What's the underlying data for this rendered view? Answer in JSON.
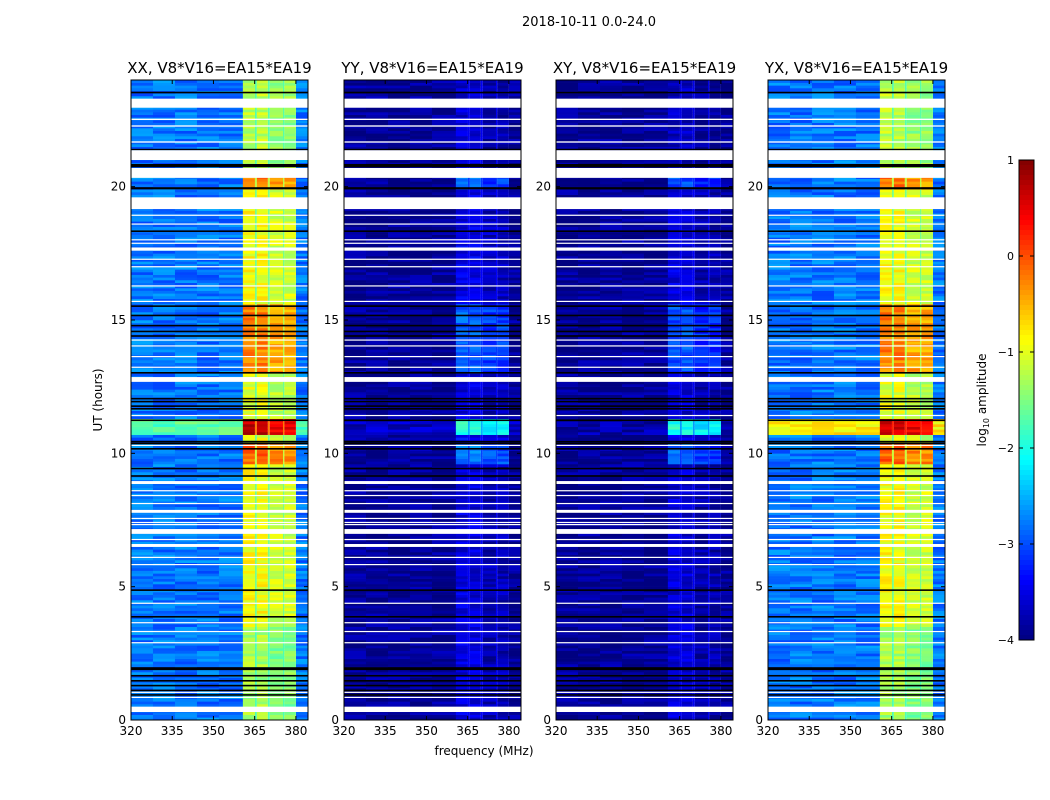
{
  "chart_data": {
    "type": "heatmap",
    "title": "2018-10-11 0.0-24.0",
    "xlabel": "frequency (MHz)",
    "ylabel": "UT (hours)",
    "xlim": [
      320,
      384.4
    ],
    "ylim": [
      0,
      24
    ],
    "xticks": [
      "320",
      "335",
      "350",
      "365",
      "380"
    ],
    "xtick_values": [
      320,
      335,
      350,
      365,
      380
    ],
    "yticks": [
      "0",
      "5",
      "10",
      "15",
      "20"
    ],
    "ytick_values": [
      0,
      5,
      10,
      15,
      20
    ],
    "colorbar": {
      "label_main": "log",
      "label_sub": "10",
      "label_rest": " amplitude",
      "range": [
        -4,
        1
      ],
      "ticks": [
        "1",
        "0",
        "−1",
        "−2",
        "−3",
        "−4"
      ],
      "tick_values": [
        1,
        0,
        -1,
        -2,
        -3,
        -4
      ],
      "colormap": "jet"
    },
    "sub_bands_mhz": [
      [
        360.7,
        365.1
      ],
      [
        365.8,
        369.8
      ],
      [
        370.5,
        375.3
      ],
      [
        375.8,
        380.0
      ]
    ],
    "flagged_hours_white": [
      [
        23.3,
        22.96
      ],
      [
        22.55,
        22.5
      ],
      [
        22.3,
        22.25
      ],
      [
        21.7,
        21.65
      ],
      [
        21.37,
        21.0
      ],
      [
        20.7,
        20.33
      ],
      [
        19.6,
        19.16
      ],
      [
        18.95,
        18.91
      ],
      [
        18.62,
        18.58
      ],
      [
        18.03,
        17.99
      ],
      [
        17.9,
        17.86
      ],
      [
        17.72,
        17.6
      ],
      [
        17.3,
        17.26
      ],
      [
        17.02,
        16.98
      ],
      [
        16.3,
        16.26
      ],
      [
        15.72,
        15.68
      ],
      [
        14.27,
        14.23
      ],
      [
        14.05,
        14.01
      ],
      [
        13.65,
        13.61
      ],
      [
        13.25,
        13.21
      ],
      [
        12.86,
        12.68
      ],
      [
        11.44,
        11.4
      ],
      [
        10.32,
        10.28
      ],
      [
        8.96,
        8.85
      ],
      [
        8.62,
        8.58
      ],
      [
        8.44,
        8.4
      ],
      [
        8.14,
        8.1
      ],
      [
        7.88,
        7.77
      ],
      [
        7.58,
        7.54
      ],
      [
        7.43,
        7.39
      ],
      [
        7.35,
        7.31
      ],
      [
        7.16,
        6.98
      ],
      [
        6.79,
        6.75
      ],
      [
        6.6,
        6.49
      ],
      [
        6.12,
        6.08
      ],
      [
        5.85,
        5.81
      ],
      [
        4.4,
        4.36
      ],
      [
        3.67,
        3.63
      ],
      [
        3.34,
        3.3
      ],
      [
        2.92,
        2.88
      ],
      [
        1.06,
        1.02
      ],
      [
        0.87,
        0.83
      ],
      [
        0.5,
        0.3
      ]
    ],
    "blank_hours_black": [
      [
        23.56,
        23.5
      ],
      [
        21.42,
        21.37
      ],
      [
        20.85,
        20.73
      ],
      [
        19.98,
        19.9
      ],
      [
        18.36,
        18.3
      ],
      [
        15.55,
        15.49
      ],
      [
        15.2,
        15.14
      ],
      [
        14.82,
        14.76
      ],
      [
        14.6,
        14.54
      ],
      [
        14.43,
        14.37
      ],
      [
        13.05,
        12.99
      ],
      [
        12.08,
        12.02
      ],
      [
        11.97,
        11.91
      ],
      [
        11.8,
        11.74
      ],
      [
        11.7,
        11.64
      ],
      [
        11.27,
        11.21
      ],
      [
        10.47,
        10.41
      ],
      [
        10.4,
        10.34
      ],
      [
        10.2,
        10.14
      ],
      [
        9.46,
        9.4
      ],
      [
        9.18,
        9.12
      ],
      [
        4.9,
        4.84
      ],
      [
        3.9,
        3.84
      ],
      [
        1.98,
        1.87
      ],
      [
        1.69,
        1.63
      ],
      [
        1.5,
        1.44
      ],
      [
        1.32,
        1.26
      ],
      [
        1.14,
        1.08
      ],
      [
        0.97,
        0.91
      ]
    ],
    "panels": [
      {
        "title": "XX, V8*V16=EA15*EA19",
        "segments": [
          {
            "hours": [
              0,
              3.5
            ],
            "band_log": -1.3,
            "background_log": -2.8
          },
          {
            "hours": [
              3.5,
              9.5
            ],
            "band_log": -0.9,
            "background_log": -2.8
          },
          {
            "hours": [
              9.5,
              10.3
            ],
            "band_log": -0.1,
            "background_log": -2.8
          },
          {
            "hours": [
              10.3,
              10.6
            ],
            "band_log": -1.0,
            "background_log": -2.8
          },
          {
            "hours": [
              10.6,
              11.2
            ],
            "band_log": 0.65,
            "background_log": -1.7
          },
          {
            "hours": [
              11.2,
              12.9
            ],
            "band_log": -1.0,
            "background_log": -2.8
          },
          {
            "hours": [
              12.9,
              15.5
            ],
            "band_log": -0.25,
            "background_log": -2.8
          },
          {
            "hours": [
              15.5,
              19.9
            ],
            "band_log": -0.9,
            "background_log": -2.8
          },
          {
            "hours": [
              19.9,
              20.5
            ],
            "band_log": -0.2,
            "background_log": -2.8
          },
          {
            "hours": [
              20.5,
              24
            ],
            "band_log": -1.2,
            "background_log": -2.8
          }
        ]
      },
      {
        "title": "YY, V8*V16=EA15*EA19",
        "segments": [
          {
            "hours": [
              0,
              9.5
            ],
            "band_log": -3.55,
            "background_log": -3.9
          },
          {
            "hours": [
              9.5,
              10.3
            ],
            "band_log": -2.8,
            "background_log": -3.9
          },
          {
            "hours": [
              10.3,
              10.6
            ],
            "band_log": -3.4,
            "background_log": -3.9
          },
          {
            "hours": [
              10.6,
              11.2
            ],
            "band_log": -1.9,
            "background_log": -3.7
          },
          {
            "hours": [
              11.2,
              12.9
            ],
            "band_log": -3.55,
            "background_log": -3.9
          },
          {
            "hours": [
              12.9,
              15.5
            ],
            "band_log": -2.9,
            "background_log": -3.9
          },
          {
            "hours": [
              15.5,
              19.9
            ],
            "band_log": -3.5,
            "background_log": -3.9
          },
          {
            "hours": [
              19.9,
              20.5
            ],
            "band_log": -2.9,
            "background_log": -3.9
          },
          {
            "hours": [
              20.5,
              24
            ],
            "band_log": -3.6,
            "background_log": -3.9
          }
        ]
      },
      {
        "title": "XY, V8*V16=EA15*EA19",
        "segments": [
          {
            "hours": [
              0,
              9.5
            ],
            "band_log": -3.6,
            "background_log": -3.9
          },
          {
            "hours": [
              9.5,
              10.3
            ],
            "band_log": -2.9,
            "background_log": -3.9
          },
          {
            "hours": [
              10.3,
              10.6
            ],
            "band_log": -3.5,
            "background_log": -3.9
          },
          {
            "hours": [
              10.6,
              11.2
            ],
            "band_log": -2.0,
            "background_log": -3.8
          },
          {
            "hours": [
              11.2,
              12.9
            ],
            "band_log": -3.6,
            "background_log": -3.9
          },
          {
            "hours": [
              12.9,
              15.5
            ],
            "band_log": -3.0,
            "background_log": -3.9
          },
          {
            "hours": [
              15.5,
              19.9
            ],
            "band_log": -3.55,
            "background_log": -3.9
          },
          {
            "hours": [
              19.9,
              20.5
            ],
            "band_log": -3.0,
            "background_log": -3.9
          },
          {
            "hours": [
              20.5,
              24
            ],
            "band_log": -3.7,
            "background_log": -3.9
          }
        ]
      },
      {
        "title": "YX, V8*V16=EA15*EA19",
        "segments": [
          {
            "hours": [
              0,
              3.5
            ],
            "band_log": -1.3,
            "background_log": -2.8
          },
          {
            "hours": [
              3.5,
              9.5
            ],
            "band_log": -0.9,
            "background_log": -2.8
          },
          {
            "hours": [
              9.5,
              10.3
            ],
            "band_log": -0.1,
            "background_log": -2.8
          },
          {
            "hours": [
              10.3,
              10.6
            ],
            "band_log": -1.0,
            "background_log": -2.8
          },
          {
            "hours": [
              10.6,
              11.2
            ],
            "band_log": 0.65,
            "background_log": -0.8
          },
          {
            "hours": [
              11.2,
              12.9
            ],
            "band_log": -1.0,
            "background_log": -2.8
          },
          {
            "hours": [
              12.9,
              15.5
            ],
            "band_log": -0.25,
            "background_log": -2.8
          },
          {
            "hours": [
              15.5,
              19.9
            ],
            "band_log": -0.9,
            "background_log": -2.8
          },
          {
            "hours": [
              19.9,
              20.5
            ],
            "band_log": -0.2,
            "background_log": -2.8
          },
          {
            "hours": [
              20.5,
              24
            ],
            "band_log": -1.2,
            "background_log": -2.8
          }
        ]
      }
    ]
  }
}
